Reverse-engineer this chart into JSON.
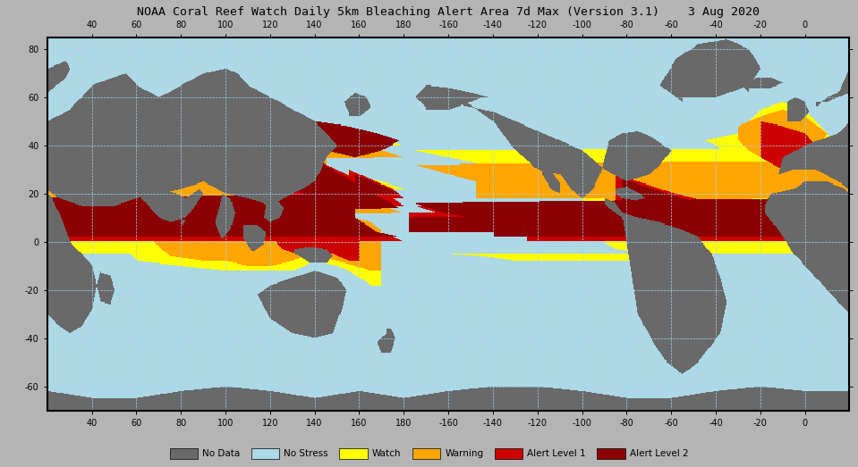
{
  "title": "NOAA Coral Reef Watch Daily 5km Bleaching Alert Area 7d Max (Version 3.1)    3 Aug 2020",
  "title_fontsize": 9.5,
  "fig_bg": "#b4b4b4",
  "map_ocean_color": [
    173,
    216,
    230
  ],
  "map_land_color": [
    105,
    105,
    105
  ],
  "colors": {
    "no_stress": [
      173,
      216,
      230
    ],
    "watch": [
      255,
      255,
      0
    ],
    "warning": [
      255,
      165,
      0
    ],
    "alert1": [
      204,
      0,
      0
    ],
    "alert2": [
      139,
      0,
      0
    ],
    "land": [
      105,
      105,
      105
    ],
    "border": [
      0,
      0,
      0
    ]
  },
  "legend_items": [
    {
      "label": "No Data",
      "color": "#696969"
    },
    {
      "label": "No Stress",
      "color": "#add8e6"
    },
    {
      "label": "Watch",
      "color": "#ffff00"
    },
    {
      "label": "Warning",
      "color": "#ffa500"
    },
    {
      "label": "Alert Level 1",
      "color": "#cc0000"
    },
    {
      "label": "Alert Level 2",
      "color": "#8b0000"
    }
  ],
  "xtick_lons": [
    40,
    60,
    80,
    100,
    120,
    140,
    160,
    180,
    -160,
    -140,
    -120,
    -100,
    -80,
    -60,
    -40,
    -20,
    0
  ],
  "ytick_lats": [
    80,
    60,
    40,
    20,
    0,
    -20,
    -40,
    -60
  ],
  "lon_extent": [
    20,
    380
  ],
  "lat_extent": [
    -70,
    85
  ]
}
